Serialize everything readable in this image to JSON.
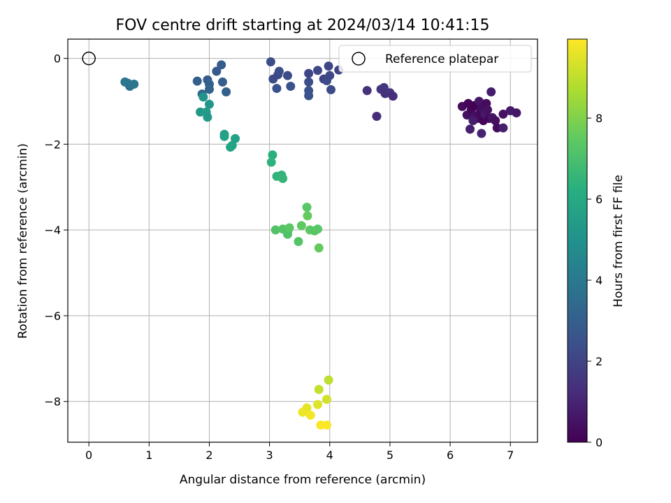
{
  "chart_data": {
    "type": "scatter",
    "title": "FOV centre drift starting at 2024/03/14 10:41:15",
    "xlabel": "Angular distance from reference (arcmin)",
    "ylabel": "Rotation from reference (arcmin)",
    "xlim": [
      -0.35,
      7.45
    ],
    "ylim": [
      -8.95,
      0.45
    ],
    "xticks": [
      0,
      1,
      2,
      3,
      4,
      5,
      6,
      7
    ],
    "yticks": [
      0,
      -2,
      -4,
      -6,
      -8
    ],
    "ytick_labels": [
      "0",
      "−2",
      "−4",
      "−6",
      "−8"
    ],
    "grid": true,
    "legend": {
      "position": "top-right",
      "label": "Reference platepar"
    },
    "reference_point": {
      "x": 0,
      "y": 0
    },
    "colorbar": {
      "label": "Hours from first FF file",
      "colormap": "viridis",
      "range": [
        0,
        9.95
      ],
      "ticks": [
        0,
        2,
        4,
        6,
        8
      ]
    },
    "points": [
      {
        "x": 6.2,
        "y": -1.12,
        "h": 0.3
      },
      {
        "x": 6.3,
        "y": -1.05,
        "h": 0.1
      },
      {
        "x": 6.28,
        "y": -1.32,
        "h": 0.4
      },
      {
        "x": 6.35,
        "y": -1.2,
        "h": 0.2
      },
      {
        "x": 6.4,
        "y": -1.1,
        "h": 0.0
      },
      {
        "x": 6.42,
        "y": -1.35,
        "h": 0.5
      },
      {
        "x": 6.45,
        "y": -1.4,
        "h": 0.3
      },
      {
        "x": 6.48,
        "y": -1.0,
        "h": 0.6
      },
      {
        "x": 6.5,
        "y": -1.25,
        "h": 0.2
      },
      {
        "x": 6.52,
        "y": -1.15,
        "h": 0.4
      },
      {
        "x": 6.55,
        "y": -1.45,
        "h": 0.1
      },
      {
        "x": 6.58,
        "y": -1.3,
        "h": 0.7
      },
      {
        "x": 6.6,
        "y": -1.05,
        "h": 0.3
      },
      {
        "x": 6.62,
        "y": -1.2,
        "h": 0.5
      },
      {
        "x": 6.65,
        "y": -1.4,
        "h": 0.2
      },
      {
        "x": 6.68,
        "y": -0.78,
        "h": 0.8
      },
      {
        "x": 6.7,
        "y": -1.38,
        "h": 0.6
      },
      {
        "x": 6.75,
        "y": -1.45,
        "h": 0.4
      },
      {
        "x": 6.78,
        "y": -1.62,
        "h": 0.3
      },
      {
        "x": 6.88,
        "y": -1.62,
        "h": 0.9
      },
      {
        "x": 6.88,
        "y": -1.3,
        "h": 0.5
      },
      {
        "x": 7.0,
        "y": -1.22,
        "h": 0.7
      },
      {
        "x": 7.1,
        "y": -1.27,
        "h": 0.6
      },
      {
        "x": 6.33,
        "y": -1.65,
        "h": 0.9
      },
      {
        "x": 6.52,
        "y": -1.75,
        "h": 1.0
      },
      {
        "x": 6.38,
        "y": -1.45,
        "h": 0.8
      },
      {
        "x": 4.62,
        "y": -0.75,
        "h": 1.4
      },
      {
        "x": 4.78,
        "y": -1.35,
        "h": 1.3
      },
      {
        "x": 4.85,
        "y": -0.72,
        "h": 1.5
      },
      {
        "x": 4.9,
        "y": -0.68,
        "h": 1.6
      },
      {
        "x": 4.92,
        "y": -0.82,
        "h": 1.4
      },
      {
        "x": 5.0,
        "y": -0.8,
        "h": 1.5
      },
      {
        "x": 5.05,
        "y": -0.88,
        "h": 1.3
      },
      {
        "x": 3.02,
        "y": -0.08,
        "h": 2.4
      },
      {
        "x": 3.06,
        "y": -0.48,
        "h": 2.3
      },
      {
        "x": 3.12,
        "y": -0.7,
        "h": 2.5
      },
      {
        "x": 3.14,
        "y": -0.38,
        "h": 2.2
      },
      {
        "x": 3.16,
        "y": -0.3,
        "h": 2.4
      },
      {
        "x": 3.3,
        "y": -0.4,
        "h": 2.3
      },
      {
        "x": 3.35,
        "y": -0.65,
        "h": 2.6
      },
      {
        "x": 3.65,
        "y": -0.35,
        "h": 2.1
      },
      {
        "x": 3.65,
        "y": -0.55,
        "h": 2.4
      },
      {
        "x": 3.65,
        "y": -0.75,
        "h": 2.5
      },
      {
        "x": 3.65,
        "y": -0.87,
        "h": 2.6
      },
      {
        "x": 3.8,
        "y": -0.28,
        "h": 2.2
      },
      {
        "x": 3.9,
        "y": -0.48,
        "h": 2.0
      },
      {
        "x": 3.95,
        "y": -0.52,
        "h": 2.3
      },
      {
        "x": 3.98,
        "y": -0.18,
        "h": 2.1
      },
      {
        "x": 4.0,
        "y": -0.4,
        "h": 2.2
      },
      {
        "x": 4.02,
        "y": -0.73,
        "h": 2.3
      },
      {
        "x": 4.15,
        "y": -0.27,
        "h": 2.0
      },
      {
        "x": 2.12,
        "y": -0.3,
        "h": 2.8
      },
      {
        "x": 2.2,
        "y": -0.15,
        "h": 2.9
      },
      {
        "x": 2.22,
        "y": -0.55,
        "h": 3.0
      },
      {
        "x": 2.28,
        "y": -0.78,
        "h": 3.1
      },
      {
        "x": 1.8,
        "y": -0.53,
        "h": 3.0
      },
      {
        "x": 1.97,
        "y": -0.5,
        "h": 2.9
      },
      {
        "x": 2.0,
        "y": -0.6,
        "h": 3.1
      },
      {
        "x": 2.0,
        "y": -0.72,
        "h": 3.2
      },
      {
        "x": 1.88,
        "y": -0.83,
        "h": 3.3
      },
      {
        "x": 0.6,
        "y": -0.55,
        "h": 3.9
      },
      {
        "x": 0.65,
        "y": -0.58,
        "h": 4.0
      },
      {
        "x": 0.68,
        "y": -0.65,
        "h": 3.8
      },
      {
        "x": 0.75,
        "y": -0.6,
        "h": 3.9
      },
      {
        "x": 1.9,
        "y": -0.9,
        "h": 5.1
      },
      {
        "x": 2.0,
        "y": -1.07,
        "h": 5.2
      },
      {
        "x": 1.85,
        "y": -1.25,
        "h": 5.3
      },
      {
        "x": 1.95,
        "y": -1.25,
        "h": 5.4
      },
      {
        "x": 1.97,
        "y": -1.37,
        "h": 5.3
      },
      {
        "x": 2.25,
        "y": -1.77,
        "h": 5.6
      },
      {
        "x": 2.25,
        "y": -1.82,
        "h": 5.7
      },
      {
        "x": 2.35,
        "y": -2.07,
        "h": 5.8
      },
      {
        "x": 2.38,
        "y": -2.03,
        "h": 5.8
      },
      {
        "x": 2.43,
        "y": -1.87,
        "h": 5.7
      },
      {
        "x": 3.05,
        "y": -2.25,
        "h": 6.3
      },
      {
        "x": 3.03,
        "y": -2.42,
        "h": 6.4
      },
      {
        "x": 3.12,
        "y": -2.75,
        "h": 6.5
      },
      {
        "x": 3.2,
        "y": -2.72,
        "h": 6.5
      },
      {
        "x": 3.22,
        "y": -2.8,
        "h": 6.6
      },
      {
        "x": 3.1,
        "y": -4.0,
        "h": 7.2
      },
      {
        "x": 3.22,
        "y": -3.98,
        "h": 7.3
      },
      {
        "x": 3.3,
        "y": -4.05,
        "h": 7.1
      },
      {
        "x": 3.3,
        "y": -4.1,
        "h": 7.2
      },
      {
        "x": 3.33,
        "y": -3.95,
        "h": 7.4
      },
      {
        "x": 3.48,
        "y": -4.27,
        "h": 7.3
      },
      {
        "x": 3.53,
        "y": -3.9,
        "h": 7.5
      },
      {
        "x": 3.62,
        "y": -3.47,
        "h": 7.4
      },
      {
        "x": 3.63,
        "y": -3.67,
        "h": 7.6
      },
      {
        "x": 3.67,
        "y": -4.0,
        "h": 7.5
      },
      {
        "x": 3.75,
        "y": -4.02,
        "h": 7.3
      },
      {
        "x": 3.8,
        "y": -3.98,
        "h": 7.4
      },
      {
        "x": 3.82,
        "y": -4.42,
        "h": 7.6
      },
      {
        "x": 3.98,
        "y": -7.5,
        "h": 9.0
      },
      {
        "x": 3.82,
        "y": -7.72,
        "h": 9.1
      },
      {
        "x": 3.95,
        "y": -7.95,
        "h": 9.3
      },
      {
        "x": 3.8,
        "y": -8.07,
        "h": 9.5
      },
      {
        "x": 3.62,
        "y": -8.15,
        "h": 9.6
      },
      {
        "x": 3.55,
        "y": -8.25,
        "h": 9.7
      },
      {
        "x": 3.68,
        "y": -8.32,
        "h": 9.8
      },
      {
        "x": 3.85,
        "y": -8.55,
        "h": 9.9
      },
      {
        "x": 3.95,
        "y": -8.55,
        "h": 9.9
      }
    ]
  }
}
